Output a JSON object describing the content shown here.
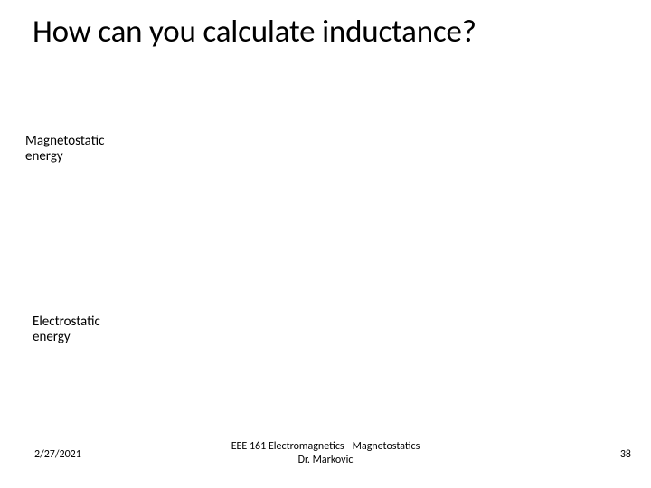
{
  "title": "How can you calculate inductance?",
  "labels": {
    "magnetostatic": "Magnetostatic\nenergy",
    "electrostatic": "Electrostatic\nenergy"
  },
  "footer": {
    "date": "2/27/2021",
    "center_line1": "EEE 161 Electromagnetics - Magnetostatics",
    "center_line2": "Dr. Markovic",
    "page": "38"
  },
  "colors": {
    "background": "#ffffff",
    "text": "#000000"
  },
  "fonts": {
    "title_size_pt": 28,
    "label_size_pt": 12,
    "footer_size_pt": 9
  }
}
